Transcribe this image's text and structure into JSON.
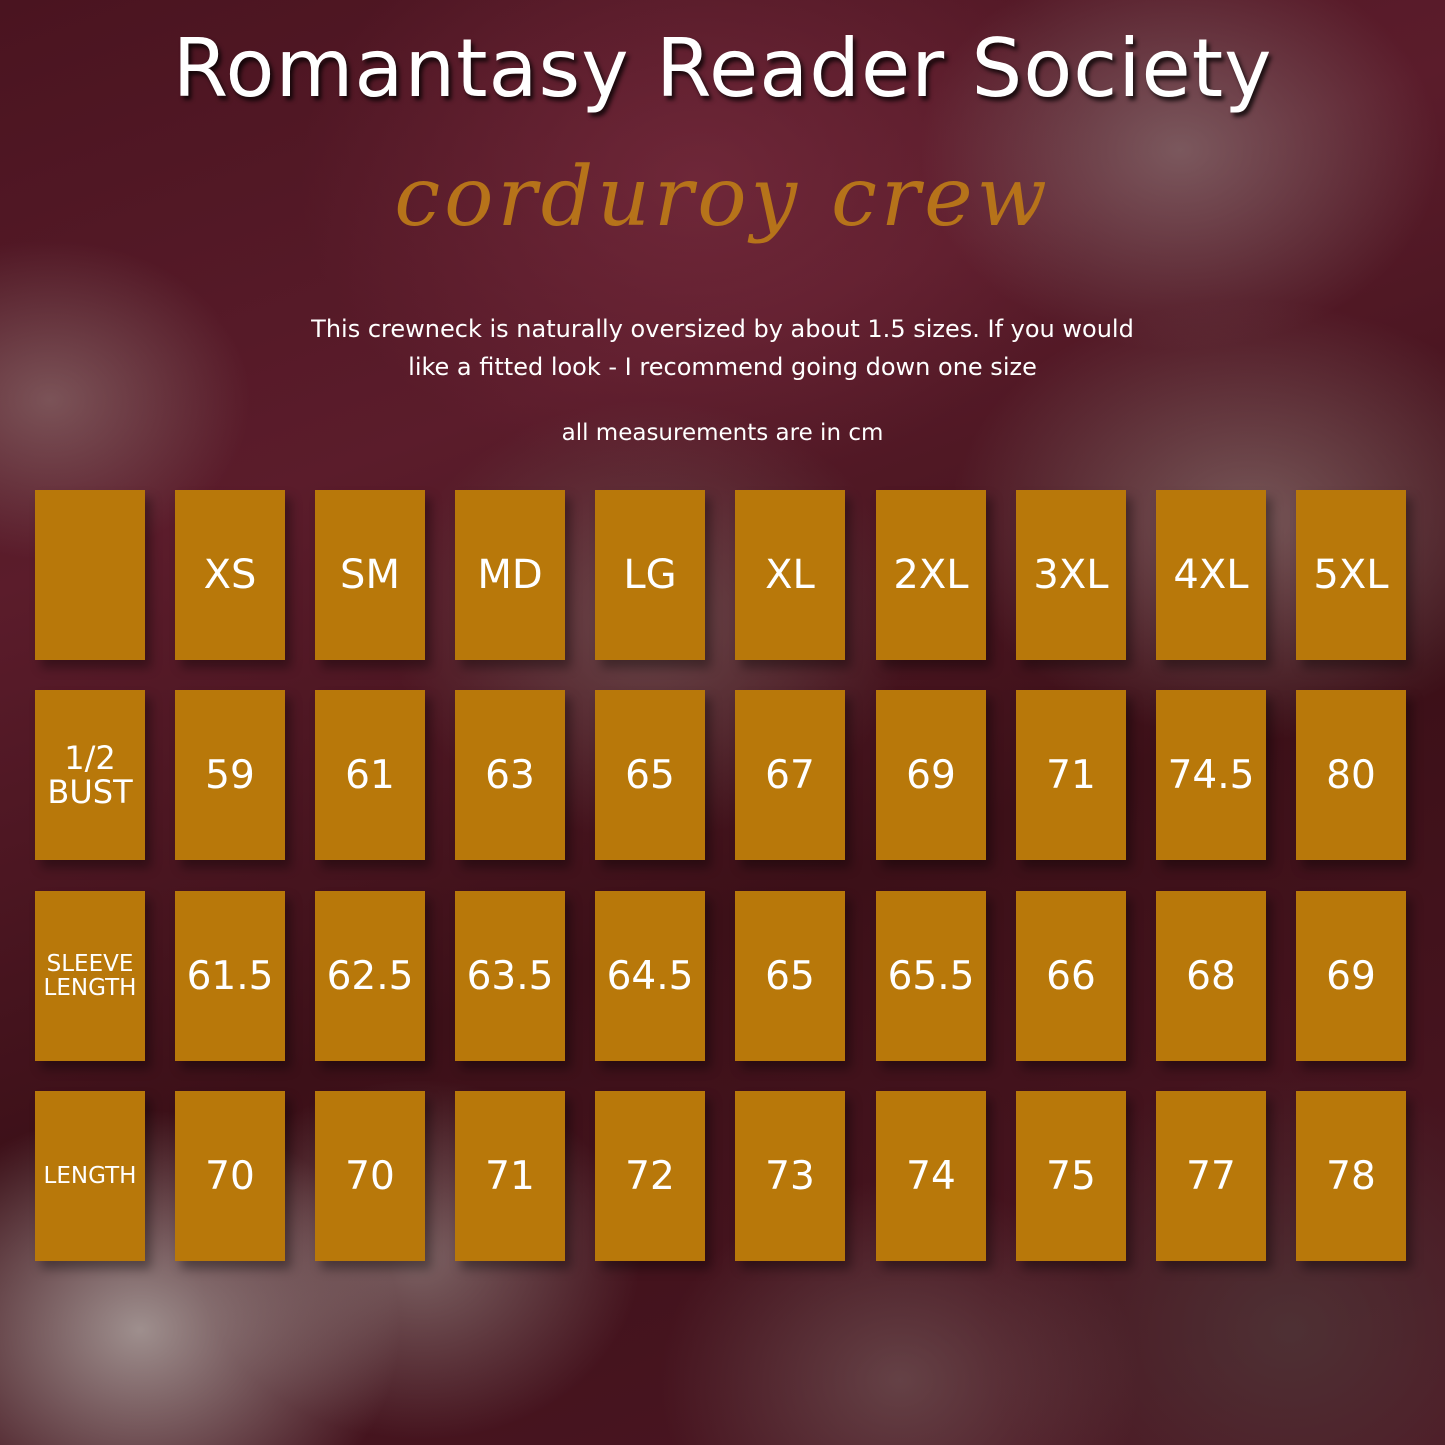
{
  "header": {
    "title": "Romantasy Reader Society",
    "subtitle": "corduroy crew",
    "note": "This crewneck is naturally oversized by about 1.5 sizes. If you would like a fitted look - I recommend going down one size",
    "units_note": "all measurements are in cm"
  },
  "colors": {
    "cell": "#b8780a",
    "subtitle": "#b6731a",
    "text": "#ffffff"
  },
  "table": {
    "corner": "",
    "sizes": [
      "XS",
      "SM",
      "MD",
      "LG",
      "XL",
      "2XL",
      "3XL",
      "4XL",
      "5XL"
    ],
    "rows": [
      {
        "label_line1": "1/2",
        "label_line2": "BUST",
        "values": [
          "59",
          "61",
          "63",
          "65",
          "67",
          "69",
          "71",
          "74.5",
          "80"
        ]
      },
      {
        "label_line1": "SLEEVE",
        "label_line2": "LENGTH",
        "values": [
          "61.5",
          "62.5",
          "63.5",
          "64.5",
          "65",
          "65.5",
          "66",
          "68",
          "69"
        ]
      },
      {
        "label_line1": "LENGTH",
        "label_line2": "",
        "values": [
          "70",
          "70",
          "71",
          "72",
          "73",
          "74",
          "75",
          "77",
          "78"
        ]
      }
    ]
  }
}
